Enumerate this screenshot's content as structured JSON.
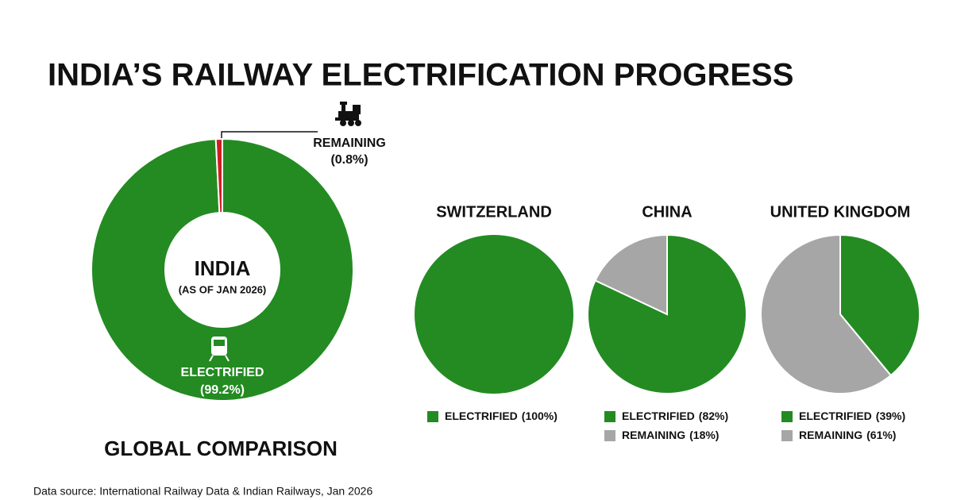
{
  "title": "INDIA’S RAILWAY ELECTRIFICATION PROGRESS",
  "section_title": "GLOBAL COMPARISON",
  "footer": "Data source: International Railway Data & Indian Railways, Jan 2026",
  "chart_data": [
    {
      "type": "donut",
      "title": "INDIA",
      "subtitle": "(AS OF JAN 2026)",
      "categories": [
        "ELECTRIFIED",
        "REMAINING"
      ],
      "values": [
        99.2,
        0.8
      ],
      "value_labels": [
        "(99.2%)",
        "(0.8%)"
      ],
      "colors": [
        "#238b22",
        "#cc2020"
      ]
    },
    {
      "type": "pie",
      "title": "SWITZERLAND",
      "categories": [
        "ELECTRIFIED"
      ],
      "values": [
        100
      ],
      "value_labels": [
        "(100%)"
      ],
      "colors": [
        "#238b22"
      ]
    },
    {
      "type": "pie",
      "title": "CHINA",
      "categories": [
        "ELECTRIFIED",
        "REMAINING"
      ],
      "values": [
        82,
        18
      ],
      "value_labels": [
        "(82%)",
        "(18%)"
      ],
      "colors": [
        "#238b22",
        "#a6a6a6"
      ]
    },
    {
      "type": "pie",
      "title": "UNITED KINGDOM",
      "categories": [
        "ELECTRIFIED",
        "REMAINING"
      ],
      "values": [
        39,
        61
      ],
      "value_labels": [
        "(39%)",
        "(61%)"
      ],
      "colors": [
        "#238b22",
        "#a6a6a6"
      ]
    }
  ]
}
